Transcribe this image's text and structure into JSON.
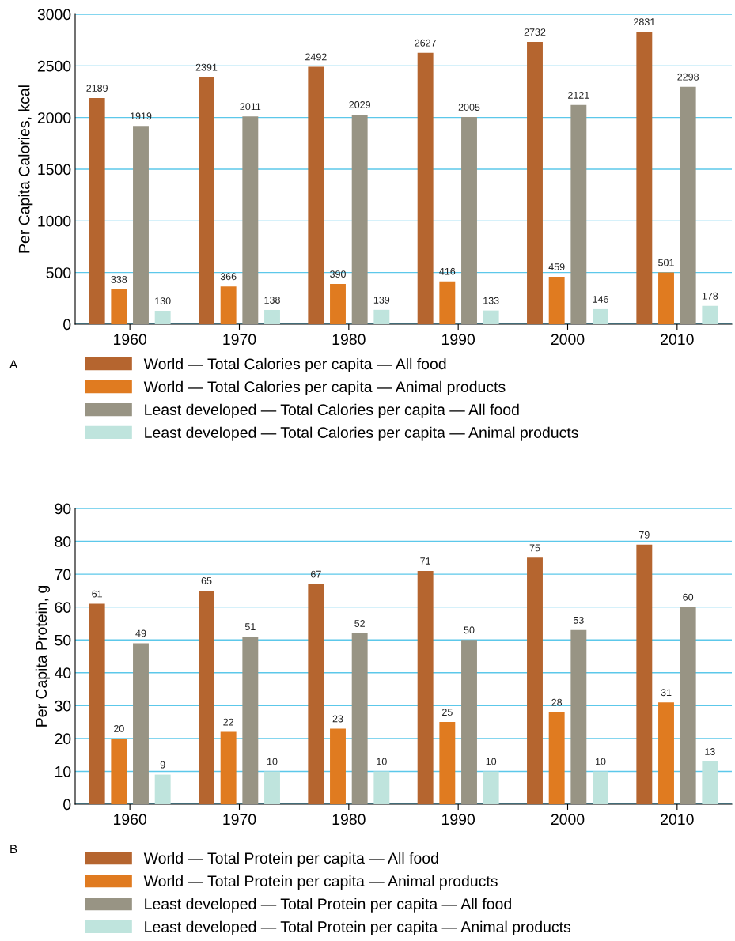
{
  "chart_data": [
    {
      "type": "bar",
      "ylabel": "Per Capita Calories, kcal",
      "categories": [
        "1960",
        "1970",
        "1980",
        "1990",
        "2000",
        "2010"
      ],
      "series": [
        {
          "name": "World — Total Calories per capita — All food",
          "color": "#b5652f",
          "values": [
            2189,
            2391,
            2492,
            2627,
            2732,
            2831
          ]
        },
        {
          "name": "World — Total Calories per capita — Animal products",
          "color": "#e07b20",
          "values": [
            338,
            366,
            390,
            416,
            459,
            501
          ]
        },
        {
          "name": "Least developed — Total Calories per capita — All food",
          "color": "#989484",
          "values": [
            1919,
            2011,
            2029,
            2005,
            2121,
            2298
          ]
        },
        {
          "name": "Least developed — Total Calories per capita — Animal products",
          "color": "#bfe4dd",
          "values": [
            130,
            138,
            139,
            133,
            146,
            178
          ]
        }
      ],
      "ylim": [
        0,
        3000
      ],
      "yticks": [
        0,
        500,
        1000,
        1500,
        2000,
        2500,
        3000
      ],
      "grid": "y",
      "legend": "bottom",
      "data_labels": true,
      "annotations": [
        "A"
      ]
    },
    {
      "type": "bar",
      "ylabel": "Per Capita Protein, g",
      "categories": [
        "1960",
        "1970",
        "1980",
        "1990",
        "2000",
        "2010"
      ],
      "series": [
        {
          "name": "World — Total Protein per capita — All food",
          "color": "#b5652f",
          "values": [
            61,
            65,
            67,
            71,
            75,
            79
          ]
        },
        {
          "name": "World — Total Protein per capita — Animal products",
          "color": "#e07b20",
          "values": [
            20,
            22,
            23,
            25,
            28,
            31
          ]
        },
        {
          "name": "Least developed — Total Protein per capita — All food",
          "color": "#989484",
          "values": [
            49,
            51,
            52,
            50,
            53,
            60
          ]
        },
        {
          "name": "Least developed — Total Protein per capita — Animal products",
          "color": "#bfe4dd",
          "values": [
            9,
            10,
            10,
            10,
            10,
            13
          ]
        }
      ],
      "ylim": [
        0,
        90
      ],
      "yticks": [
        0,
        10,
        20,
        30,
        40,
        50,
        60,
        70,
        80,
        90
      ],
      "grid": "y",
      "legend": "bottom",
      "data_labels": true,
      "annotations": [
        "B"
      ]
    }
  ]
}
